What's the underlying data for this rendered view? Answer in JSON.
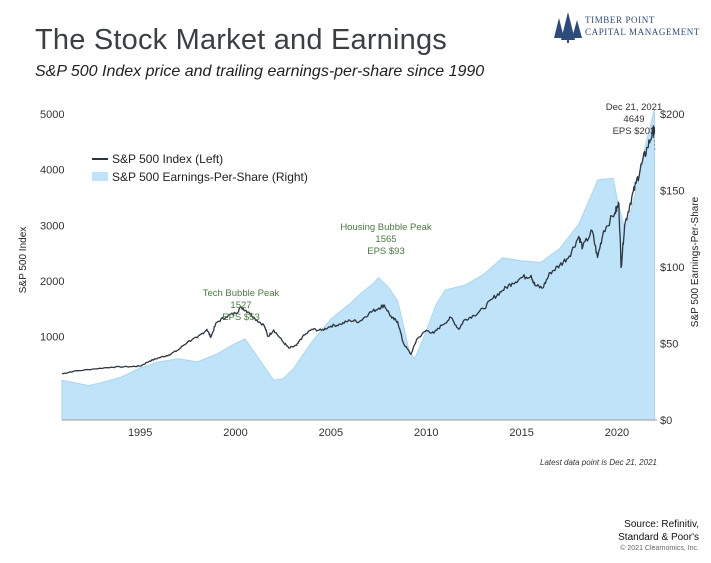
{
  "header": {
    "title": "The Stock Market and Earnings",
    "subtitle": "S&P 500 Index price and trailing earnings-per-share since 1990"
  },
  "logo": {
    "line1": "Timber Point",
    "line2": "Capital Management",
    "icon": "pine-trees-icon",
    "color": "#2c4a7a"
  },
  "footnote": "Latest data point is Dec 21, 2021",
  "source": {
    "line1": "Source: Refinitiv,",
    "line2": "Standard & Poor's"
  },
  "copyright": "© 2021 Clearnomics, Inc.",
  "chart_data": {
    "type": "line",
    "ylabel_left": "S&P 500 Index",
    "ylabel_right": "S&P 500 Earnings-Per-Share",
    "x_ticks": [
      1995,
      2000,
      2005,
      2010,
      2015,
      2020
    ],
    "xlim": [
      1990.9,
      2022.1
    ],
    "ylim_left": [
      -500,
      5000
    ],
    "yticks_left": [
      1000,
      2000,
      3000,
      4000,
      5000
    ],
    "ylim_right": [
      0,
      200
    ],
    "yticks_right": [
      "$0",
      "$50",
      "$100",
      "$150",
      "$200"
    ],
    "legend": {
      "placement": "top-left",
      "entries": [
        "S&P 500 Index (Left)",
        "S&P 500 Earnings-Per-Share (Right)"
      ]
    },
    "series": [
      {
        "name": "S&P 500 Index (Left)",
        "kind": "line",
        "axis": "left",
        "color": "#2d3540",
        "points": [
          [
            1990.9,
            330
          ],
          [
            1991.5,
            375
          ],
          [
            1992.5,
            415
          ],
          [
            1993.5,
            450
          ],
          [
            1994.5,
            460
          ],
          [
            1995.0,
            470
          ],
          [
            1995.5,
            560
          ],
          [
            1996.0,
            620
          ],
          [
            1996.5,
            670
          ],
          [
            1997.0,
            760
          ],
          [
            1997.5,
            910
          ],
          [
            1998.0,
            980
          ],
          [
            1998.5,
            1130
          ],
          [
            1998.7,
            990
          ],
          [
            1999.0,
            1250
          ],
          [
            1999.5,
            1360
          ],
          [
            2000.0,
            1420
          ],
          [
            2000.3,
            1527
          ],
          [
            2000.7,
            1440
          ],
          [
            2001.0,
            1330
          ],
          [
            2001.5,
            1200
          ],
          [
            2001.7,
            1000
          ],
          [
            2002.0,
            1120
          ],
          [
            2002.5,
            900
          ],
          [
            2002.8,
            790
          ],
          [
            2003.2,
            840
          ],
          [
            2003.5,
            990
          ],
          [
            2004.0,
            1130
          ],
          [
            2004.5,
            1110
          ],
          [
            2005.0,
            1190
          ],
          [
            2005.5,
            1220
          ],
          [
            2006.0,
            1290
          ],
          [
            2006.5,
            1270
          ],
          [
            2007.0,
            1420
          ],
          [
            2007.5,
            1510
          ],
          [
            2007.8,
            1565
          ],
          [
            2008.2,
            1330
          ],
          [
            2008.5,
            1270
          ],
          [
            2008.8,
            880
          ],
          [
            2009.2,
            680
          ],
          [
            2009.5,
            950
          ],
          [
            2010.0,
            1110
          ],
          [
            2010.4,
            1060
          ],
          [
            2010.8,
            1200
          ],
          [
            2011.3,
            1340
          ],
          [
            2011.7,
            1130
          ],
          [
            2012.0,
            1300
          ],
          [
            2012.5,
            1380
          ],
          [
            2013.0,
            1500
          ],
          [
            2013.5,
            1690
          ],
          [
            2014.0,
            1830
          ],
          [
            2014.5,
            1960
          ],
          [
            2015.0,
            2060
          ],
          [
            2015.5,
            2100
          ],
          [
            2015.7,
            1920
          ],
          [
            2016.1,
            1870
          ],
          [
            2016.5,
            2150
          ],
          [
            2017.0,
            2280
          ],
          [
            2017.5,
            2450
          ],
          [
            2018.0,
            2800
          ],
          [
            2018.2,
            2600
          ],
          [
            2018.7,
            2900
          ],
          [
            2018.98,
            2420
          ],
          [
            2019.3,
            2900
          ],
          [
            2019.9,
            3230
          ],
          [
            2020.1,
            3380
          ],
          [
            2020.22,
            2240
          ],
          [
            2020.4,
            3000
          ],
          [
            2020.7,
            3400
          ],
          [
            2021.0,
            3750
          ],
          [
            2021.3,
            4100
          ],
          [
            2021.6,
            4400
          ],
          [
            2021.9,
            4700
          ],
          [
            2021.97,
            4649
          ]
        ]
      },
      {
        "name": "S&P 500 Earnings-Per-Share (Right)",
        "kind": "area",
        "axis": "right",
        "color": "#bfe3f8",
        "points": [
          [
            1990.9,
            26
          ],
          [
            1991.5,
            24.5
          ],
          [
            1992.3,
            22.5
          ],
          [
            1993.0,
            24.5
          ],
          [
            1994.0,
            28
          ],
          [
            1995.0,
            34
          ],
          [
            1996.0,
            38
          ],
          [
            1997.0,
            40
          ],
          [
            1998.0,
            38
          ],
          [
            1999.0,
            43
          ],
          [
            2000.0,
            50
          ],
          [
            2000.5,
            53
          ],
          [
            2001.0,
            44
          ],
          [
            2001.5,
            35
          ],
          [
            2002.0,
            26
          ],
          [
            2002.5,
            27
          ],
          [
            2003.0,
            33
          ],
          [
            2004.0,
            51
          ],
          [
            2005.0,
            66
          ],
          [
            2006.0,
            76
          ],
          [
            2006.6,
            83
          ],
          [
            2007.2,
            89
          ],
          [
            2007.5,
            93
          ],
          [
            2008.0,
            87
          ],
          [
            2008.5,
            78
          ],
          [
            2008.8,
            62
          ],
          [
            2009.1,
            45
          ],
          [
            2009.4,
            40
          ],
          [
            2010.0,
            58
          ],
          [
            2010.5,
            75
          ],
          [
            2011.0,
            85
          ],
          [
            2012.0,
            88
          ],
          [
            2013.0,
            95
          ],
          [
            2014.0,
            106
          ],
          [
            2015.0,
            104
          ],
          [
            2016.0,
            103
          ],
          [
            2017.0,
            112
          ],
          [
            2018.0,
            128
          ],
          [
            2019.0,
            157
          ],
          [
            2019.8,
            158
          ],
          [
            2020.0,
            145
          ],
          [
            2020.4,
            125
          ],
          [
            2020.7,
            135
          ],
          [
            2021.0,
            150
          ],
          [
            2021.5,
            180
          ],
          [
            2021.97,
            203
          ]
        ]
      }
    ],
    "annotations": [
      {
        "lines": [
          "Tech Bubble Peak",
          "1527",
          "EPS $53"
        ],
        "x": 2000.3,
        "color": "#4a7a42"
      },
      {
        "lines": [
          "Housing Bubble Peak",
          "1565",
          "EPS $93"
        ],
        "x": 2007.8,
        "color": "#4a7a42"
      },
      {
        "lines": [
          "Dec 21, 2021",
          "4649",
          "EPS $203"
        ],
        "x": 2021.97,
        "color": "#333333"
      }
    ]
  }
}
